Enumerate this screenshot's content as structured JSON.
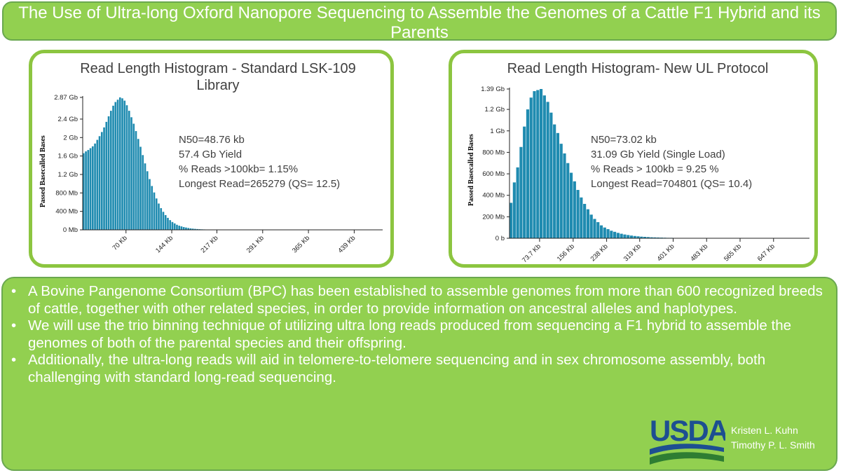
{
  "title": "The Use of Ultra-long Oxford Nanopore Sequencing to Assemble the Genomes of a Cattle F1 Hybrid and its Parents",
  "chart_data": [
    {
      "type": "bar",
      "title": "Read Length Histogram - Standard LSK-109 Library",
      "ylabel": "Passed Basecalled Bases",
      "y_unit": "Gb",
      "y_ticks": [
        "0 Mb",
        "400 Mb",
        "800 Mb",
        "1.2 Gb",
        "1.6 Gb",
        "2 Gb",
        "2.4 Gb",
        "2.87 Gb"
      ],
      "y_tick_values": [
        0,
        0.4,
        0.8,
        1.2,
        1.6,
        2.0,
        2.4,
        2.87
      ],
      "x_ticks": [
        "70 Kb",
        "144 Kb",
        "217 Kb",
        "291 Kb",
        "365 Kb",
        "439 Kb"
      ],
      "x_tick_values": [
        70,
        144,
        217,
        291,
        365,
        439
      ],
      "x_unit": "Kb",
      "bin_width_kb": 3.68,
      "xlim": [
        0,
        485
      ],
      "ylim": [
        0,
        2.87
      ],
      "values": [
        1.66,
        1.7,
        1.73,
        1.77,
        1.81,
        1.87,
        1.95,
        2.03,
        2.12,
        2.22,
        2.34,
        2.46,
        2.58,
        2.69,
        2.77,
        2.82,
        2.87,
        2.85,
        2.8,
        2.7,
        2.58,
        2.44,
        2.3,
        2.14,
        1.97,
        1.8,
        1.62,
        1.44,
        1.27,
        1.1,
        0.95,
        0.81,
        0.68,
        0.57,
        0.47,
        0.39,
        0.32,
        0.26,
        0.21,
        0.17,
        0.14,
        0.11,
        0.09,
        0.075,
        0.06,
        0.05,
        0.04,
        0.032,
        0.026,
        0.021,
        0.017,
        0.014,
        0.011,
        0.009,
        0.007,
        0.006,
        0.005,
        0.004,
        0.003,
        0.003,
        0.002,
        0.002
      ],
      "stats": [
        "N50=48.76 kb",
        "57.4 Gb Yield",
        "% Reads >100kb= 1.15%",
        "Longest Read=265279 (QS= 12.5)"
      ],
      "bar_color": "#1f8bb0"
    },
    {
      "type": "bar",
      "title": "Read Length Histogram- New UL Protocol",
      "ylabel": "Passed Basecalled Bases",
      "y_unit": "Gb",
      "y_ticks": [
        "0 b",
        "200 Mb",
        "400 Mb",
        "600 Mb",
        "800 Mb",
        "1 Gb",
        "1.2 Gb",
        "1.39 Gb"
      ],
      "y_tick_values": [
        0,
        0.2,
        0.4,
        0.6,
        0.8,
        1.0,
        1.2,
        1.39
      ],
      "x_ticks": [
        "73.7 Kb",
        "156 Kb",
        "238 Kb",
        "319 Kb",
        "401 Kb",
        "483 Kb",
        "565 Kb",
        "647 Kb"
      ],
      "x_tick_values": [
        73.7,
        156,
        238,
        319,
        401,
        483,
        565,
        647
      ],
      "x_unit": "Kb",
      "bin_width_kb": 8.2,
      "xlim": [
        0,
        735
      ],
      "ylim": [
        0,
        1.39
      ],
      "values": [
        0.33,
        0.52,
        0.66,
        0.85,
        1.04,
        1.2,
        1.31,
        1.37,
        1.38,
        1.39,
        1.33,
        1.27,
        1.17,
        1.06,
        0.98,
        0.88,
        0.79,
        0.7,
        0.61,
        0.53,
        0.45,
        0.38,
        0.32,
        0.27,
        0.22,
        0.18,
        0.15,
        0.12,
        0.1,
        0.085,
        0.07,
        0.06,
        0.05,
        0.042,
        0.035,
        0.03,
        0.025,
        0.021,
        0.018,
        0.015,
        0.013,
        0.011,
        0.009,
        0.008,
        0.007,
        0.006,
        0.005,
        0.004,
        0.004,
        0.003,
        0.003,
        0.002,
        0.002,
        0.002,
        0.002,
        0.001,
        0.001,
        0.001,
        0.001,
        0.001
      ],
      "stats": [
        "N50=73.02 kb",
        "31.09 Gb Yield (Single Load)",
        "% Reads > 100kb = 9.25 %",
        "Longest Read=704801 (QS= 10.4)"
      ],
      "bar_color": "#1f8bb0"
    }
  ],
  "bullets": [
    "A Bovine Pangenome Consortium (BPC) has been established to assemble genomes from more than 600 recognized breeds of cattle, together with other related species, in order to provide information on ancestral alleles and haplotypes.",
    "We will use the trio binning technique of utilizing ultra long reads produced from sequencing a F1 hybrid to assemble the genomes of both of the parental species and their offspring.",
    "Additionally, the ultra-long reads will aid in telomere-to-telomere sequencing and in sex chromosome assembly, both challenging with standard long-read sequencing."
  ],
  "logo": {
    "text": "USDA",
    "color_text": "#1d4f91",
    "color_swoosh_blue": "#1d4f91",
    "color_swoosh_green": "#2e7d32"
  },
  "authors": [
    "Kristen L. Kuhn",
    "Timothy P. L. Smith"
  ],
  "colors": {
    "green_box": "#92d050",
    "panel_border": "#8cc540",
    "bar": "#1f8bb0"
  }
}
